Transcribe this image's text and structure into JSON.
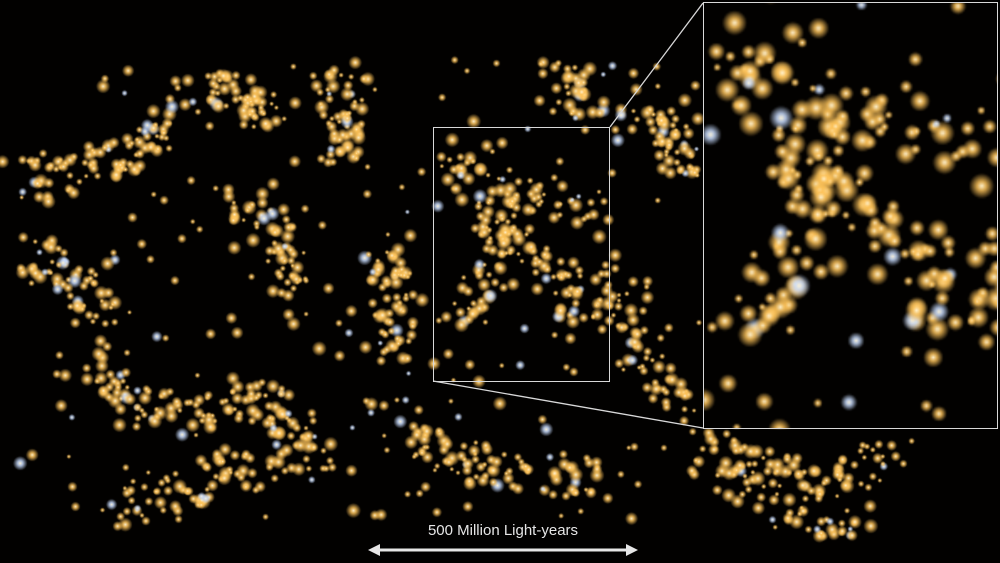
{
  "scale_bar": {
    "label": "500 Million Light-years"
  },
  "colors": {
    "background": "#020100",
    "galaxy": "#f5b942",
    "frame": "#d8d8d8"
  }
}
